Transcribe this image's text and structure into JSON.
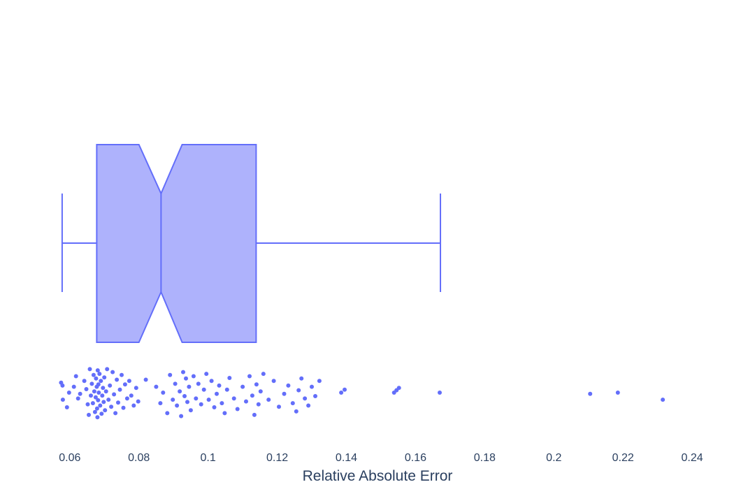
{
  "chart_data": {
    "type": "box",
    "orientation": "horizontal",
    "notched": true,
    "show_points": "all",
    "color": "#636efa",
    "fill_color": "#aeb2fc",
    "xlabel": "Relative Absolute Error",
    "xlim": [
      0.056,
      0.242
    ],
    "x_ticks": [
      0.06,
      0.08,
      0.1,
      0.12,
      0.14,
      0.16,
      0.18,
      0.2,
      0.22,
      0.24
    ],
    "x_tick_labels": [
      "0.06",
      "0.08",
      "0.1",
      "0.12",
      "0.14",
      "0.16",
      "0.18",
      "0.2",
      "0.22",
      "0.24"
    ],
    "grid": false,
    "box": {
      "lower_fence": 0.0578,
      "q1": 0.0678,
      "notch_low": 0.08,
      "median": 0.0864,
      "notch_high": 0.0925,
      "q3": 0.1139,
      "upper_fence": 0.1672
    },
    "points": [
      [
        0.0575,
        0.33
      ],
      [
        0.0579,
        0.38
      ],
      [
        0.058,
        0.62
      ],
      [
        0.0592,
        0.75
      ],
      [
        0.0598,
        0.5
      ],
      [
        0.0612,
        0.4
      ],
      [
        0.0618,
        0.22
      ],
      [
        0.0624,
        0.6
      ],
      [
        0.063,
        0.52
      ],
      [
        0.0642,
        0.3
      ],
      [
        0.0648,
        0.44
      ],
      [
        0.0652,
        0.7
      ],
      [
        0.0655,
        0.88
      ],
      [
        0.0658,
        0.1
      ],
      [
        0.0661,
        0.55
      ],
      [
        0.0664,
        0.35
      ],
      [
        0.0667,
        0.68
      ],
      [
        0.0669,
        0.2
      ],
      [
        0.0671,
        0.48
      ],
      [
        0.0673,
        0.83
      ],
      [
        0.0675,
        0.58
      ],
      [
        0.0676,
        0.26
      ],
      [
        0.0678,
        0.4
      ],
      [
        0.0679,
        0.77
      ],
      [
        0.068,
        0.92
      ],
      [
        0.0681,
        0.12
      ],
      [
        0.0682,
        0.63
      ],
      [
        0.0683,
        0.36
      ],
      [
        0.0684,
        0.5
      ],
      [
        0.0686,
        0.18
      ],
      [
        0.0688,
        0.72
      ],
      [
        0.069,
        0.3
      ],
      [
        0.0692,
        0.86
      ],
      [
        0.0694,
        0.55
      ],
      [
        0.0696,
        0.42
      ],
      [
        0.0698,
        0.66
      ],
      [
        0.07,
        0.24
      ],
      [
        0.0702,
        0.8
      ],
      [
        0.0705,
        0.48
      ],
      [
        0.0708,
        0.1
      ],
      [
        0.0712,
        0.62
      ],
      [
        0.0716,
        0.38
      ],
      [
        0.072,
        0.74
      ],
      [
        0.0724,
        0.15
      ],
      [
        0.0728,
        0.53
      ],
      [
        0.0732,
        0.85
      ],
      [
        0.0736,
        0.28
      ],
      [
        0.074,
        0.67
      ],
      [
        0.0745,
        0.45
      ],
      [
        0.075,
        0.2
      ],
      [
        0.0755,
        0.76
      ],
      [
        0.076,
        0.36
      ],
      [
        0.0766,
        0.6
      ],
      [
        0.0772,
        0.3
      ],
      [
        0.0778,
        0.55
      ],
      [
        0.0785,
        0.72
      ],
      [
        0.0792,
        0.42
      ],
      [
        0.0798,
        0.65
      ],
      [
        0.082,
        0.28
      ],
      [
        0.085,
        0.4
      ],
      [
        0.0862,
        0.68
      ],
      [
        0.087,
        0.5
      ],
      [
        0.0882,
        0.85
      ],
      [
        0.089,
        0.2
      ],
      [
        0.0898,
        0.62
      ],
      [
        0.0905,
        0.35
      ],
      [
        0.091,
        0.72
      ],
      [
        0.0918,
        0.48
      ],
      [
        0.0922,
        0.9
      ],
      [
        0.0928,
        0.15
      ],
      [
        0.0932,
        0.56
      ],
      [
        0.0936,
        0.26
      ],
      [
        0.094,
        0.66
      ],
      [
        0.0945,
        0.4
      ],
      [
        0.095,
        0.8
      ],
      [
        0.0958,
        0.22
      ],
      [
        0.0965,
        0.6
      ],
      [
        0.0972,
        0.35
      ],
      [
        0.098,
        0.7
      ],
      [
        0.0988,
        0.45
      ],
      [
        0.0995,
        0.18
      ],
      [
        0.1002,
        0.62
      ],
      [
        0.101,
        0.3
      ],
      [
        0.1018,
        0.75
      ],
      [
        0.1025,
        0.52
      ],
      [
        0.1032,
        0.38
      ],
      [
        0.104,
        0.68
      ],
      [
        0.1048,
        0.85
      ],
      [
        0.1055,
        0.45
      ],
      [
        0.1062,
        0.25
      ],
      [
        0.1075,
        0.6
      ],
      [
        0.1085,
        0.78
      ],
      [
        0.11,
        0.4
      ],
      [
        0.111,
        0.65
      ],
      [
        0.112,
        0.22
      ],
      [
        0.1128,
        0.55
      ],
      [
        0.1134,
        0.88
      ],
      [
        0.114,
        0.36
      ],
      [
        0.1146,
        0.7
      ],
      [
        0.1152,
        0.48
      ],
      [
        0.116,
        0.18
      ],
      [
        0.1175,
        0.62
      ],
      [
        0.119,
        0.3
      ],
      [
        0.1205,
        0.74
      ],
      [
        0.122,
        0.52
      ],
      [
        0.1232,
        0.38
      ],
      [
        0.1245,
        0.68
      ],
      [
        0.1255,
        0.82
      ],
      [
        0.1262,
        0.46
      ],
      [
        0.127,
        0.26
      ],
      [
        0.128,
        0.6
      ],
      [
        0.129,
        0.72
      ],
      [
        0.13,
        0.4
      ],
      [
        0.131,
        0.56
      ],
      [
        0.1322,
        0.3
      ],
      [
        0.1385,
        0.5
      ],
      [
        0.1395,
        0.45
      ],
      [
        0.1538,
        0.5
      ],
      [
        0.1545,
        0.46
      ],
      [
        0.1552,
        0.42
      ],
      [
        0.167,
        0.5
      ],
      [
        0.2105,
        0.52
      ],
      [
        0.2185,
        0.5
      ],
      [
        0.2315,
        0.62
      ]
    ]
  }
}
